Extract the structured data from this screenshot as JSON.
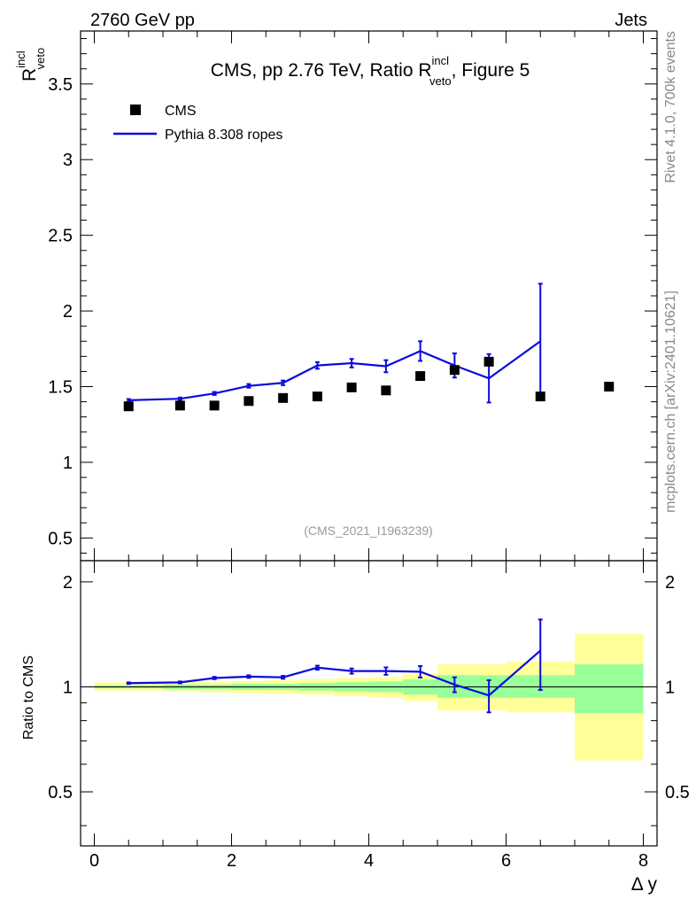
{
  "header": {
    "left": "2760 GeV pp",
    "right": "Jets"
  },
  "side_text": {
    "rivet": "Rivet 4.1.0,  700k events",
    "mcplots": "mcplots.cern.ch [arXiv:2401.10621]"
  },
  "colors": {
    "mc": "#0a0ae0",
    "data": "#000000",
    "band_inner": "#99ff99",
    "band_outer": "#ffff99"
  },
  "chart_data": {
    "type": "scatter",
    "title_main": "CMS, pp 2.76 TeV, Ratio R",
    "title_sup": "incl",
    "title_sub": "veto",
    "title_suffix": ", Figure 5",
    "ylabel_main": "R",
    "ylabel_sup": "incl",
    "ylabel_sub": "veto",
    "ratio_ylabel": "Ratio to CMS",
    "xlabel": "Δ y",
    "watermark": "(CMS_2021_I1963239)",
    "xlim": [
      -0.2,
      8.2
    ],
    "ylim": [
      0.35,
      3.85
    ],
    "ratio_ylim": [
      0.35,
      2.3
    ],
    "xticks": [
      "0",
      "2",
      "4",
      "6",
      "8"
    ],
    "yticks": [
      "0.5",
      "1",
      "1.5",
      "2",
      "2.5",
      "3",
      "3.5"
    ],
    "ratio_yticks": [
      "0.5",
      "1",
      "2"
    ],
    "legend": [
      {
        "name": "CMS",
        "marker": "square"
      },
      {
        "name": "Pythia 8.308 ropes",
        "marker": "line"
      }
    ],
    "series": [
      {
        "name": "CMS",
        "x": [
          0.5,
          1.25,
          1.75,
          2.25,
          2.75,
          3.25,
          3.75,
          4.25,
          4.75,
          5.25,
          5.75,
          6.5,
          7.5
        ],
        "y": [
          1.37,
          1.375,
          1.375,
          1.405,
          1.425,
          1.435,
          1.495,
          1.475,
          1.57,
          1.61,
          1.665,
          1.435,
          1.5
        ]
      },
      {
        "name": "Pythia 8.308 ropes",
        "x": [
          0.5,
          1.25,
          1.75,
          2.25,
          2.75,
          3.25,
          3.75,
          4.25,
          4.75,
          5.25,
          5.75,
          6.5
        ],
        "y": [
          1.41,
          1.42,
          1.455,
          1.505,
          1.525,
          1.64,
          1.655,
          1.635,
          1.735,
          1.64,
          1.555,
          1.8
        ],
        "yerr": [
          0.008,
          0.008,
          0.01,
          0.012,
          0.015,
          0.022,
          0.028,
          0.04,
          0.065,
          0.08,
          0.16,
          0.38
        ]
      }
    ],
    "ratio_series": {
      "name": "Pythia 8.308 ropes / CMS",
      "x": [
        0.5,
        1.25,
        1.75,
        2.25,
        2.75,
        3.25,
        3.75,
        4.25,
        4.75,
        5.25,
        5.75,
        6.5
      ],
      "y": [
        1.025,
        1.03,
        1.06,
        1.07,
        1.065,
        1.135,
        1.11,
        1.11,
        1.105,
        1.015,
        0.945,
        1.27
      ],
      "yerr": [
        0.005,
        0.006,
        0.008,
        0.009,
        0.01,
        0.015,
        0.019,
        0.027,
        0.042,
        0.05,
        0.1,
        0.29
      ]
    },
    "uncertainty_bands": {
      "edges": [
        0,
        0.5,
        1,
        1.5,
        2,
        2.5,
        3,
        3.5,
        4,
        4.5,
        5,
        5.5,
        6,
        7,
        8
      ],
      "inner": [
        [
          0.99,
          1.01
        ],
        [
          0.99,
          1.01
        ],
        [
          0.985,
          1.015
        ],
        [
          0.985,
          1.015
        ],
        [
          0.98,
          1.02
        ],
        [
          0.98,
          1.02
        ],
        [
          0.975,
          1.025
        ],
        [
          0.97,
          1.03
        ],
        [
          0.965,
          1.035
        ],
        [
          0.95,
          1.05
        ],
        [
          0.93,
          1.08
        ],
        [
          0.93,
          1.08
        ],
        [
          0.93,
          1.08
        ],
        [
          0.84,
          1.16
        ]
      ],
      "outer": [
        [
          0.975,
          1.03
        ],
        [
          0.975,
          1.03
        ],
        [
          0.97,
          1.035
        ],
        [
          0.965,
          1.035
        ],
        [
          0.96,
          1.04
        ],
        [
          0.955,
          1.045
        ],
        [
          0.95,
          1.05
        ],
        [
          0.94,
          1.06
        ],
        [
          0.93,
          1.065
        ],
        [
          0.91,
          1.09
        ],
        [
          0.855,
          1.16
        ],
        [
          0.855,
          1.16
        ],
        [
          0.845,
          1.18
        ],
        [
          0.615,
          1.42
        ]
      ]
    }
  }
}
